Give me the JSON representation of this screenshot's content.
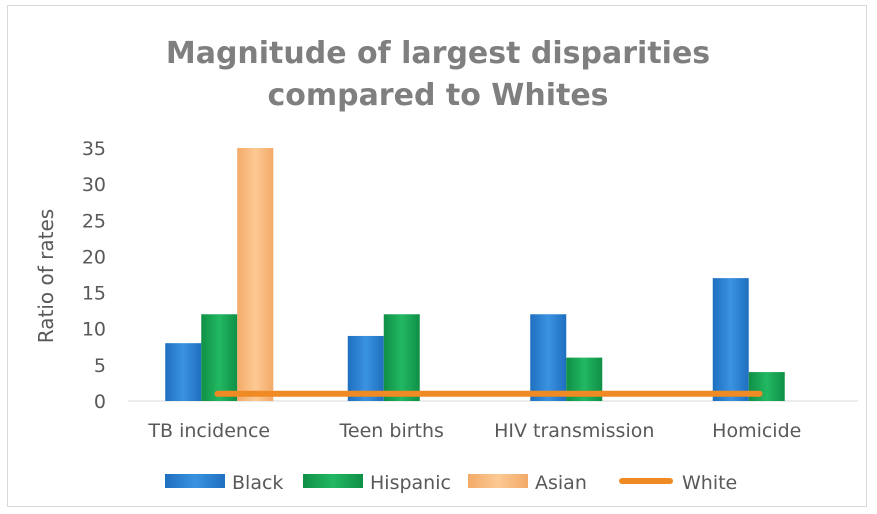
{
  "chart_data": {
    "type": "bar",
    "title_lines": [
      "Magnitude of largest disparities",
      "compared to Whites"
    ],
    "xlabel": "",
    "ylabel": "Ratio of rates",
    "ylim": [
      0,
      35
    ],
    "yticks": [
      "0",
      "5",
      "10",
      "15",
      "20",
      "25",
      "30",
      "35"
    ],
    "grid": false,
    "legend_position": "bottom",
    "categories": [
      "TB incidence",
      "Teen births",
      "HIV transmission",
      "Homicide"
    ],
    "series": [
      {
        "name": "Black",
        "type": "bar",
        "color": "#2e86d6",
        "values": [
          8,
          9,
          12,
          17
        ]
      },
      {
        "name": "Hispanic",
        "type": "bar",
        "color": "#1aa857",
        "values": [
          12,
          12,
          6,
          4
        ]
      },
      {
        "name": "Asian",
        "type": "bar",
        "color": "#f8bb80",
        "values": [
          35,
          null,
          null,
          null
        ]
      },
      {
        "name": "White",
        "type": "line",
        "color": "#f08a24",
        "values": [
          1,
          1,
          1,
          1
        ]
      }
    ]
  }
}
